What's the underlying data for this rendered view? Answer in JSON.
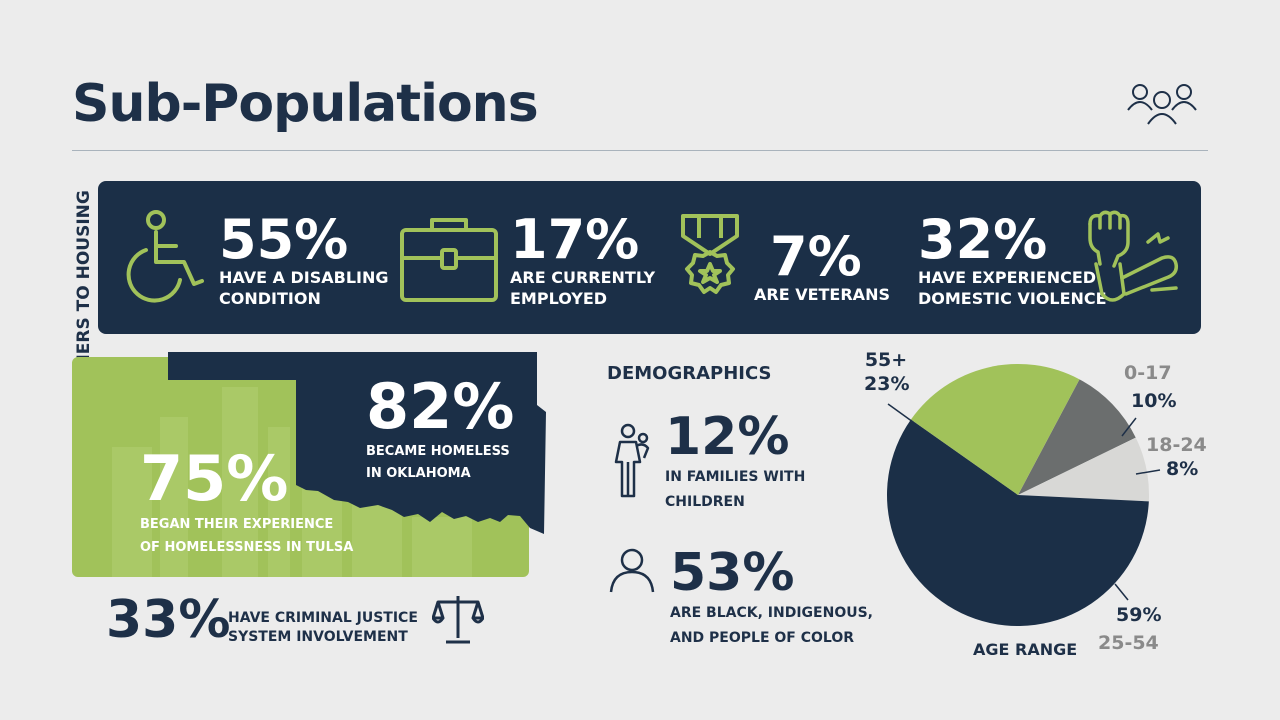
{
  "title": "Sub-Populations",
  "side_label": "EXPERIENCES & BARRIERS TO HOUSING",
  "banner_stats": [
    {
      "value": "55%",
      "label_line1": "HAVE A DISABLING",
      "label_line2": "CONDITION",
      "icon": "wheelchair-icon"
    },
    {
      "value": "17%",
      "label_line1": "ARE CURRENTLY",
      "label_line2": "EMPLOYED",
      "icon": "briefcase-icon"
    },
    {
      "value": "7%",
      "label_line1": "ARE VETERANS",
      "label_line2": "",
      "icon": "medal-icon"
    },
    {
      "value": "32%",
      "label_line1": "HAVE EXPERIENCED",
      "label_line2": "DOMESTIC VIOLENCE",
      "icon": "fist-icon"
    }
  ],
  "oklahoma": {
    "value": "82%",
    "label_line1": "BECAME HOMELESS",
    "label_line2": "IN OKLAHOMA"
  },
  "tulsa": {
    "value": "75%",
    "label_line1": "BEGAN THEIR EXPERIENCE",
    "label_line2": "OF HOMELESSNESS IN TULSA"
  },
  "justice": {
    "value": "33%",
    "label_line1": "HAVE CRIMINAL JUSTICE",
    "label_line2": "SYSTEM INVOLVEMENT",
    "icon": "scales-icon"
  },
  "demographics": {
    "heading": "DEMOGRAPHICS",
    "families": {
      "value": "12%",
      "label_line1": "IN FAMILIES WITH",
      "label_line2": "CHILDREN",
      "icon": "parent-child-icon"
    },
    "bipoc": {
      "value": "53%",
      "label_line1": "ARE BLACK, INDIGENOUS,",
      "label_line2": "AND PEOPLE OF COLOR",
      "icon": "person-icon"
    }
  },
  "colors": {
    "navy": "#1b2f47",
    "green": "#a1c25a",
    "dark_gray": "#6b6e6e",
    "light_gray": "#d8d8d6"
  },
  "chart_data": {
    "type": "pie",
    "title": "AGE RANGE",
    "slices": [
      {
        "label": "0-17",
        "value": 10,
        "display": "10%",
        "color": "#6b6e6e"
      },
      {
        "label": "18-24",
        "value": 8,
        "display": "8%",
        "color": "#d8d8d6"
      },
      {
        "label": "25-54",
        "value": 59,
        "display": "59%",
        "color": "#1b2f47"
      },
      {
        "label": "55+",
        "value": 23,
        "display": "23%",
        "color": "#a1c25a"
      }
    ]
  }
}
